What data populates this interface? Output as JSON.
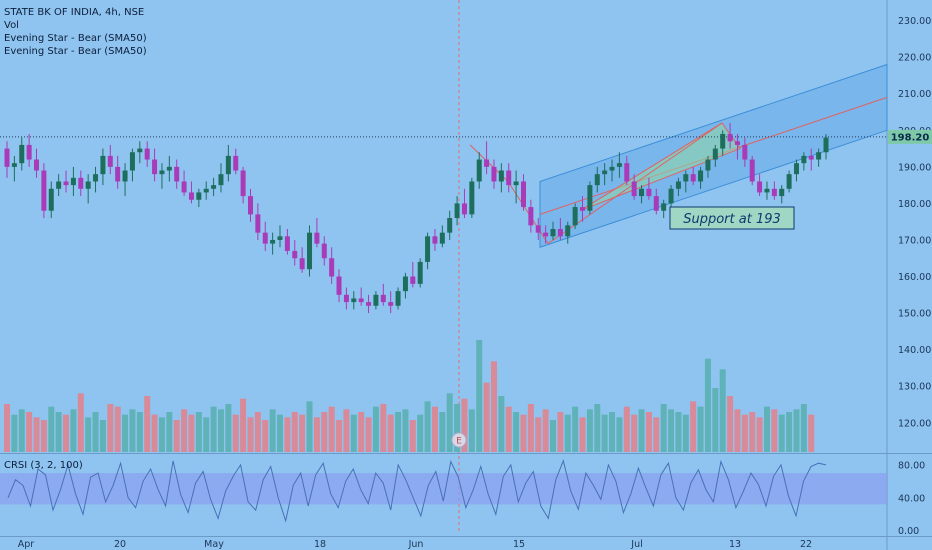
{
  "legend": {
    "symbol": "STATE BK OF INDIA, 4h, NSE",
    "vol": "Vol",
    "ind1": "Evening Star - Bear (SMA50)",
    "ind2": "Evening Star - Bear (SMA50)"
  },
  "crsi_label": "CRSI (3, 2, 100)",
  "colors": {
    "background": "#8fc4f0",
    "up": "#1d6e5c",
    "down": "#a93ab8",
    "vol_up": "#5fb3b8",
    "vol_down": "#d98a98",
    "channel_fill": "#6fb0ea",
    "channel_line": "#3d8fd8",
    "trend_red": "#e06262",
    "triangle_fill": "#8fd3a8",
    "crsi_band": "#8a9df0",
    "crsi_line": "#4a6fb8"
  },
  "chart_data": {
    "type": "candlestick",
    "price_axis": {
      "ticks": [
        "230.00",
        "220.00",
        "210.00",
        "200.00",
        "190.00",
        "180.00",
        "170.00",
        "160.00",
        "150.00",
        "140.00",
        "130.00",
        "120.00"
      ],
      "ylim": [
        112,
        234
      ]
    },
    "x_ticks": [
      "Apr",
      "20",
      "May",
      "18",
      "Jun",
      "15",
      "Jul",
      "13",
      "22"
    ],
    "last_price": "198.20",
    "annotation": "Support at 193",
    "event_marker": "E",
    "crsi_axis": {
      "ticks": [
        "80.00",
        "40.00",
        "0.00"
      ],
      "ylim": [
        -4,
        92
      ],
      "band": [
        32,
        70
      ]
    },
    "candles": [
      [
        195,
        197,
        187,
        190
      ],
      [
        190,
        193,
        186,
        191
      ],
      [
        191,
        198,
        189,
        196
      ],
      [
        196,
        199,
        190,
        192
      ],
      [
        192,
        195,
        187,
        189
      ],
      [
        189,
        191,
        176,
        178
      ],
      [
        178,
        186,
        176,
        184
      ],
      [
        184,
        188,
        182,
        186
      ],
      [
        186,
        189,
        183,
        185
      ],
      [
        185,
        190,
        182,
        187
      ],
      [
        187,
        189,
        182,
        184
      ],
      [
        184,
        188,
        180,
        186
      ],
      [
        186,
        190,
        183,
        188
      ],
      [
        188,
        195,
        185,
        193
      ],
      [
        193,
        196,
        188,
        190
      ],
      [
        190,
        193,
        184,
        186
      ],
      [
        186,
        191,
        182,
        189
      ],
      [
        189,
        195,
        186,
        194
      ],
      [
        194,
        197,
        191,
        195
      ],
      [
        195,
        197,
        190,
        192
      ],
      [
        192,
        195,
        186,
        188
      ],
      [
        188,
        191,
        184,
        189
      ],
      [
        189,
        193,
        186,
        190
      ],
      [
        190,
        192,
        184,
        186
      ],
      [
        186,
        189,
        182,
        183
      ],
      [
        183,
        186,
        180,
        181
      ],
      [
        181,
        184,
        179,
        183
      ],
      [
        183,
        186,
        181,
        184
      ],
      [
        184,
        187,
        182,
        185
      ],
      [
        185,
        191,
        183,
        188
      ],
      [
        188,
        196,
        186,
        193
      ],
      [
        193,
        195,
        188,
        189
      ],
      [
        189,
        190,
        180,
        182
      ],
      [
        182,
        184,
        175,
        177
      ],
      [
        177,
        180,
        170,
        172
      ],
      [
        172,
        175,
        167,
        169
      ],
      [
        169,
        172,
        166,
        170
      ],
      [
        170,
        174,
        168,
        171
      ],
      [
        171,
        173,
        166,
        167
      ],
      [
        167,
        170,
        163,
        165
      ],
      [
        165,
        168,
        161,
        162
      ],
      [
        162,
        174,
        160,
        172
      ],
      [
        172,
        176,
        168,
        169
      ],
      [
        169,
        171,
        163,
        165
      ],
      [
        165,
        168,
        158,
        160
      ],
      [
        160,
        162,
        153,
        155
      ],
      [
        155,
        157,
        151,
        153
      ],
      [
        153,
        156,
        151,
        154
      ],
      [
        154,
        157,
        152,
        153
      ],
      [
        153,
        155,
        150,
        152
      ],
      [
        152,
        156,
        151,
        155
      ],
      [
        155,
        158,
        152,
        153
      ],
      [
        153,
        156,
        150,
        152
      ],
      [
        152,
        157,
        151,
        156
      ],
      [
        156,
        161,
        154,
        160
      ],
      [
        160,
        164,
        157,
        158
      ],
      [
        158,
        165,
        157,
        164
      ],
      [
        164,
        172,
        162,
        171
      ],
      [
        171,
        173,
        167,
        169
      ],
      [
        169,
        174,
        168,
        172
      ],
      [
        172,
        178,
        170,
        176
      ],
      [
        176,
        182,
        174,
        180
      ],
      [
        180,
        184,
        176,
        177
      ],
      [
        177,
        187,
        176,
        186
      ],
      [
        186,
        194,
        184,
        192
      ],
      [
        192,
        197,
        188,
        190
      ],
      [
        190,
        192,
        184,
        186
      ],
      [
        186,
        191,
        183,
        189
      ],
      [
        189,
        191,
        183,
        185
      ],
      [
        185,
        189,
        180,
        186
      ],
      [
        186,
        188,
        178,
        179
      ],
      [
        179,
        181,
        172,
        174
      ],
      [
        174,
        176,
        170,
        172
      ],
      [
        172,
        174,
        169,
        171
      ],
      [
        171,
        175,
        170,
        173
      ],
      [
        173,
        176,
        170,
        171
      ],
      [
        171,
        175,
        169,
        174
      ],
      [
        174,
        180,
        173,
        179
      ],
      [
        179,
        182,
        175,
        178
      ],
      [
        178,
        186,
        177,
        185
      ],
      [
        185,
        190,
        183,
        188
      ],
      [
        188,
        191,
        185,
        189
      ],
      [
        189,
        192,
        186,
        190
      ],
      [
        190,
        194,
        187,
        191
      ],
      [
        191,
        193,
        185,
        186
      ],
      [
        186,
        188,
        181,
        182
      ],
      [
        182,
        185,
        180,
        184
      ],
      [
        184,
        187,
        181,
        182
      ],
      [
        182,
        184,
        177,
        178
      ],
      [
        178,
        181,
        176,
        180
      ],
      [
        180,
        185,
        179,
        184
      ],
      [
        184,
        187,
        182,
        186
      ],
      [
        186,
        189,
        183,
        188
      ],
      [
        188,
        190,
        185,
        186
      ],
      [
        186,
        190,
        184,
        189
      ],
      [
        189,
        193,
        187,
        192
      ],
      [
        192,
        196,
        190,
        195
      ],
      [
        195,
        200,
        193,
        199
      ],
      [
        199,
        202,
        195,
        197
      ],
      [
        197,
        199,
        192,
        196
      ],
      [
        196,
        198,
        190,
        192
      ],
      [
        192,
        193,
        185,
        186
      ],
      [
        186,
        188,
        182,
        183
      ],
      [
        183,
        186,
        181,
        184
      ],
      [
        184,
        186,
        181,
        182
      ],
      [
        182,
        185,
        180,
        184
      ],
      [
        184,
        189,
        183,
        188
      ],
      [
        188,
        192,
        186,
        191
      ],
      [
        191,
        194,
        189,
        193
      ],
      [
        193,
        195,
        189,
        192
      ],
      [
        192,
        195,
        190,
        194
      ],
      [
        194,
        199,
        192,
        198
      ]
    ],
    "volumes": [
      18,
      14,
      16,
      15,
      13,
      12,
      17,
      15,
      14,
      16,
      22,
      13,
      15,
      12,
      18,
      17,
      14,
      16,
      15,
      21,
      14,
      13,
      15,
      12,
      16,
      14,
      15,
      13,
      17,
      16,
      18,
      14,
      20,
      13,
      15,
      12,
      16,
      14,
      13,
      15,
      14,
      19,
      13,
      15,
      17,
      12,
      16,
      14,
      15,
      13,
      17,
      18,
      14,
      15,
      16,
      12,
      14,
      19,
      17,
      15,
      22,
      18,
      20,
      16,
      42,
      26,
      34,
      21,
      17,
      15,
      14,
      18,
      13,
      16,
      12,
      15,
      14,
      17,
      13,
      16,
      18,
      14,
      15,
      13,
      17,
      14,
      16,
      15,
      13,
      18,
      16,
      15,
      14,
      19,
      17,
      35,
      24,
      31,
      21,
      16,
      14,
      15,
      13,
      17,
      16,
      14,
      15,
      16,
      18,
      14
    ],
    "crsi": [
      40,
      62,
      55,
      30,
      75,
      68,
      25,
      50,
      80,
      45,
      20,
      65,
      70,
      35,
      55,
      82,
      40,
      28,
      60,
      75,
      50,
      30,
      85,
      44,
      22,
      58,
      72,
      38,
      15,
      48,
      66,
      80,
      35,
      25,
      62,
      78,
      40,
      12,
      55,
      70,
      30,
      68,
      82,
      45,
      28,
      60,
      75,
      50,
      33,
      70,
      58,
      25,
      80,
      62,
      40,
      18,
      55,
      72,
      36,
      84,
      65,
      28,
      50,
      78,
      44,
      20,
      66,
      80,
      35,
      58,
      72,
      30,
      15,
      62,
      85,
      48,
      26,
      70,
      55,
      38,
      80,
      60,
      22,
      45,
      76,
      52,
      30,
      68,
      82,
      40,
      25,
      58,
      74,
      50,
      35,
      84,
      62,
      28,
      48,
      70,
      56,
      30,
      66,
      80,
      42,
      18,
      60,
      78,
      82,
      80
    ]
  }
}
